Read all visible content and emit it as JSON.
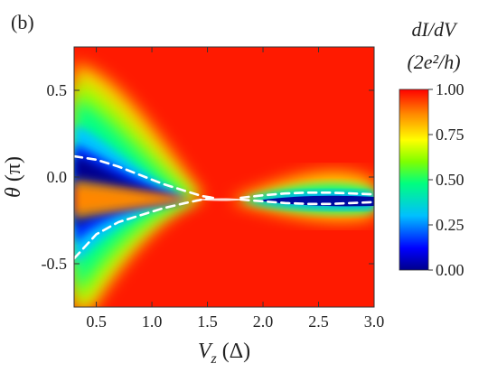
{
  "chart_data": {
    "type": "heatmap",
    "panel_label": "(b)",
    "xlabel": "Vz (Δ)",
    "ylabel": "θ (π)",
    "xlim": [
      0.3,
      3.0
    ],
    "ylim": [
      -0.75,
      0.75
    ],
    "x_ticks": [
      "0.5",
      "1.0",
      "1.5",
      "2.0",
      "2.5",
      "3.0"
    ],
    "x_tick_values": [
      0.5,
      1.0,
      1.5,
      2.0,
      2.5,
      3.0
    ],
    "y_ticks": [
      "0.5",
      "0.0",
      "-0.5"
    ],
    "y_tick_values": [
      0.5,
      0.0,
      -0.5
    ],
    "colorbar": {
      "title_line1": "dI/dV",
      "title_line2": "(2e²/h)",
      "ticks": [
        "1.00",
        "0.75",
        "0.50",
        "0.25",
        "0.00"
      ],
      "tick_values": [
        1.0,
        0.75,
        0.5,
        0.25,
        0.0
      ],
      "range": [
        0.0,
        1.0
      ],
      "colors": [
        "#00008b",
        "#0000ff",
        "#00bfff",
        "#00ff7f",
        "#7fff00",
        "#ffff00",
        "#ff8c00",
        "#ff0000"
      ]
    },
    "dashed_curves": [
      {
        "x": [
          0.3,
          0.5,
          0.7,
          0.9,
          1.1,
          1.3,
          1.45,
          1.55
        ],
        "y": [
          0.12,
          0.1,
          0.06,
          0.01,
          -0.04,
          -0.08,
          -0.11,
          -0.12
        ]
      },
      {
        "x": [
          0.3,
          0.5,
          0.7,
          0.9,
          1.1,
          1.3,
          1.45,
          1.55
        ],
        "y": [
          -0.47,
          -0.33,
          -0.26,
          -0.22,
          -0.18,
          -0.15,
          -0.13,
          -0.12
        ]
      },
      {
        "x": [
          1.8,
          2.0,
          2.2,
          2.4,
          2.6,
          2.8,
          3.0
        ],
        "y": [
          -0.12,
          -0.105,
          -0.095,
          -0.09,
          -0.09,
          -0.095,
          -0.1
        ]
      },
      {
        "x": [
          1.8,
          2.0,
          2.2,
          2.4,
          2.6,
          2.8,
          3.0
        ],
        "y": [
          -0.13,
          -0.14,
          -0.15,
          -0.155,
          -0.155,
          -0.15,
          -0.145
        ]
      }
    ],
    "background_value": 1.0
  }
}
